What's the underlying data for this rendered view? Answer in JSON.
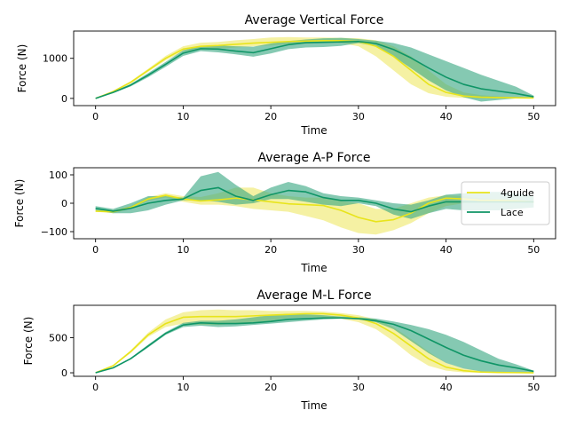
{
  "colors": {
    "4guide": "#e8e41b",
    "Lace": "#0f9566",
    "4guide_band": "#efe96b",
    "Lace_band": "#3aa882"
  },
  "legend": {
    "entries": [
      "4guide",
      "Lace"
    ],
    "placement": "right"
  },
  "chart_data": [
    {
      "type": "line",
      "title": "Average Vertical Force",
      "xlabel": "Time",
      "ylabel": "Force (N)",
      "xlim": [
        -2.5,
        52.5
      ],
      "ylim": [
        -180,
        1680
      ],
      "xticks": [
        0,
        10,
        20,
        30,
        40,
        50
      ],
      "yticks": [
        0,
        1000
      ],
      "x": [
        0,
        2,
        4,
        6,
        8,
        10,
        12,
        14,
        16,
        18,
        20,
        22,
        24,
        26,
        28,
        30,
        32,
        34,
        36,
        38,
        40,
        42,
        44,
        46,
        48,
        50
      ],
      "series": [
        {
          "name": "4guide",
          "values": [
            0,
            170,
            400,
            700,
            1000,
            1230,
            1300,
            1320,
            1350,
            1380,
            1400,
            1420,
            1430,
            1440,
            1440,
            1420,
            1300,
            1050,
            700,
            350,
            150,
            60,
            30,
            20,
            15,
            10
          ],
          "lower": [
            0,
            150,
            370,
            660,
            950,
            1170,
            1220,
            1240,
            1270,
            1300,
            1320,
            1350,
            1360,
            1380,
            1380,
            1300,
            1050,
            700,
            350,
            130,
            40,
            10,
            0,
            0,
            0,
            0
          ],
          "upper": [
            0,
            190,
            430,
            740,
            1060,
            1300,
            1390,
            1410,
            1450,
            1480,
            1520,
            1530,
            1520,
            1520,
            1510,
            1500,
            1450,
            1300,
            1050,
            700,
            350,
            150,
            80,
            50,
            30,
            20
          ]
        },
        {
          "name": "Lace",
          "values": [
            0,
            150,
            330,
            580,
            850,
            1130,
            1240,
            1230,
            1180,
            1140,
            1240,
            1340,
            1390,
            1400,
            1410,
            1420,
            1370,
            1220,
            1010,
            760,
            530,
            350,
            240,
            180,
            120,
            40
          ],
          "lower": [
            0,
            130,
            300,
            530,
            790,
            1060,
            1180,
            1150,
            1100,
            1040,
            1120,
            1230,
            1270,
            1280,
            1310,
            1380,
            1300,
            1050,
            750,
            450,
            200,
            30,
            -80,
            -40,
            0,
            20
          ],
          "upper": [
            0,
            170,
            360,
            630,
            910,
            1200,
            1300,
            1320,
            1300,
            1290,
            1370,
            1430,
            1470,
            1500,
            1510,
            1480,
            1440,
            1380,
            1270,
            1100,
            930,
            760,
            590,
            440,
            290,
            70
          ]
        }
      ]
    },
    {
      "type": "line",
      "title": "Average A-P Force",
      "xlabel": "Time",
      "ylabel": "Force (N)",
      "xlim": [
        -2.5,
        52.5
      ],
      "ylim": [
        -125,
        125
      ],
      "xticks": [
        0,
        10,
        20,
        30,
        40,
        50
      ],
      "yticks": [
        -100,
        0,
        100
      ],
      "x": [
        0,
        2,
        4,
        6,
        8,
        10,
        12,
        14,
        16,
        18,
        20,
        22,
        24,
        26,
        28,
        30,
        32,
        34,
        36,
        38,
        40,
        42,
        44,
        46,
        48,
        50
      ],
      "series": [
        {
          "name": "4guide",
          "values": [
            -28,
            -30,
            -15,
            15,
            28,
            15,
            8,
            12,
            18,
            12,
            5,
            -2,
            -5,
            -8,
            -25,
            -50,
            -65,
            -58,
            -35,
            0,
            18,
            15,
            10,
            10,
            8,
            5
          ],
          "lower": [
            -30,
            -35,
            -20,
            8,
            20,
            5,
            -5,
            -5,
            -10,
            -20,
            -25,
            -30,
            -45,
            -60,
            -85,
            -105,
            -110,
            -95,
            -70,
            -35,
            -10,
            0,
            5,
            5,
            5,
            0
          ],
          "upper": [
            -22,
            -25,
            -10,
            22,
            35,
            25,
            22,
            35,
            55,
            55,
            35,
            25,
            20,
            20,
            8,
            0,
            -20,
            -20,
            0,
            20,
            28,
            25,
            18,
            15,
            12,
            8
          ]
        },
        {
          "name": "Lace",
          "values": [
            -18,
            -28,
            -18,
            0,
            10,
            15,
            45,
            55,
            25,
            10,
            30,
            45,
            40,
            20,
            10,
            10,
            0,
            -20,
            -30,
            -10,
            5,
            5,
            5,
            5,
            5,
            5
          ],
          "lower": [
            -25,
            -35,
            -35,
            -25,
            -5,
            10,
            10,
            5,
            -5,
            0,
            15,
            15,
            5,
            -5,
            -10,
            0,
            -10,
            -40,
            -55,
            -35,
            -20,
            -25,
            -25,
            -25,
            -20,
            -15
          ],
          "upper": [
            -10,
            -20,
            0,
            25,
            25,
            20,
            95,
            110,
            65,
            25,
            55,
            75,
            60,
            35,
            25,
            20,
            10,
            0,
            -5,
            10,
            30,
            35,
            40,
            40,
            35,
            25
          ]
        }
      ]
    },
    {
      "type": "line",
      "title": "Average M-L Force",
      "xlabel": "Time",
      "ylabel": "Force (N)",
      "xlim": [
        -2.5,
        52.5
      ],
      "ylim": [
        -50,
        960
      ],
      "xticks": [
        0,
        10,
        20,
        30,
        40,
        50
      ],
      "yticks": [
        0,
        500
      ],
      "x": [
        0,
        2,
        4,
        6,
        8,
        10,
        12,
        14,
        16,
        18,
        20,
        22,
        24,
        26,
        28,
        30,
        32,
        34,
        36,
        38,
        40,
        42,
        44,
        46,
        48,
        50
      ],
      "series": [
        {
          "name": "4guide",
          "values": [
            0,
            100,
            300,
            540,
            700,
            790,
            800,
            800,
            800,
            810,
            820,
            830,
            840,
            840,
            820,
            780,
            700,
            560,
            380,
            200,
            80,
            30,
            10,
            5,
            2,
            0
          ],
          "lower": [
            0,
            90,
            280,
            510,
            650,
            700,
            680,
            680,
            700,
            720,
            740,
            780,
            790,
            790,
            770,
            720,
            620,
            450,
            250,
            100,
            30,
            5,
            0,
            0,
            0,
            0
          ],
          "upper": [
            0,
            110,
            320,
            570,
            760,
            860,
            890,
            900,
            890,
            890,
            880,
            880,
            880,
            870,
            850,
            820,
            760,
            650,
            480,
            300,
            140,
            60,
            25,
            10,
            5,
            0
          ]
        },
        {
          "name": "Lace",
          "values": [
            0,
            70,
            200,
            380,
            560,
            680,
            710,
            700,
            700,
            710,
            730,
            760,
            770,
            780,
            780,
            770,
            740,
            690,
            600,
            480,
            360,
            250,
            170,
            110,
            70,
            20
          ],
          "lower": [
            0,
            65,
            190,
            360,
            540,
            650,
            670,
            650,
            660,
            680,
            700,
            720,
            740,
            760,
            770,
            760,
            720,
            620,
            450,
            280,
            140,
            60,
            20,
            10,
            5,
            0
          ],
          "upper": [
            0,
            75,
            210,
            400,
            580,
            710,
            740,
            740,
            760,
            790,
            820,
            840,
            830,
            820,
            800,
            790,
            770,
            730,
            680,
            620,
            540,
            440,
            320,
            200,
            120,
            30
          ]
        }
      ]
    }
  ]
}
